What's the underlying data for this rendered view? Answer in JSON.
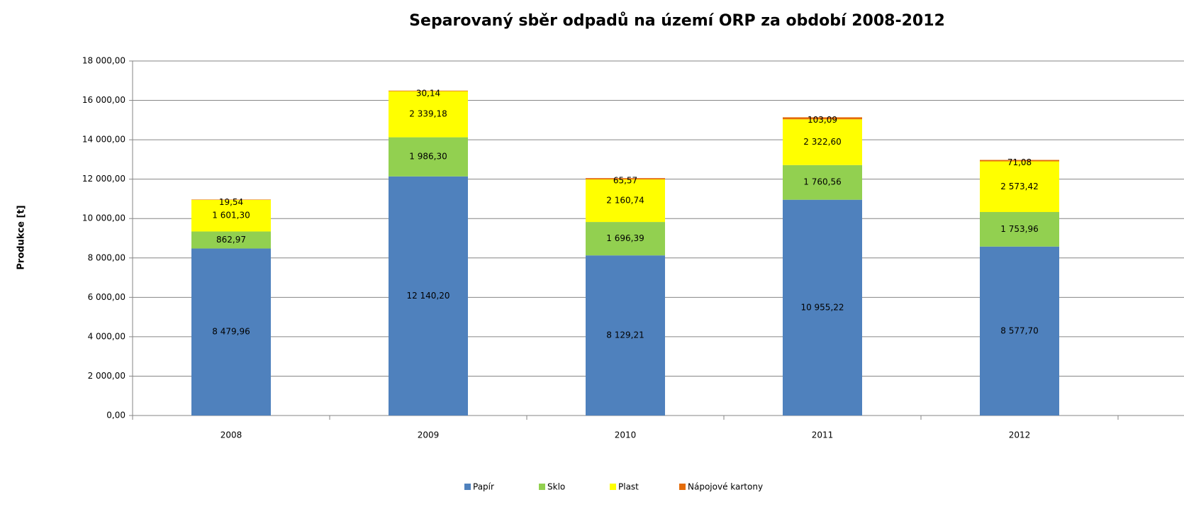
{
  "chart_data": {
    "type": "stacked_bar",
    "title": "Separovaný sběr odpadů na území ORP za období 2008-2012",
    "y_label": "Produkce [t]",
    "categories": [
      "2008",
      "2009",
      "2010",
      "2011",
      "2012"
    ],
    "series": [
      {
        "name": "Papír",
        "color": "#4f81bd",
        "values": [
          8479.96,
          12140.2,
          8129.21,
          10955.22,
          8577.7
        ],
        "value_labels": [
          "8 479,96",
          "12 140,20",
          "8 129,21",
          "10 955,22",
          "8 577,70"
        ]
      },
      {
        "name": "Sklo",
        "color": "#92d050",
        "values": [
          862.97,
          1986.3,
          1696.39,
          1760.56,
          1753.96
        ],
        "value_labels": [
          "862,97",
          "1 986,30",
          "1 696,39",
          "1 760,56",
          "1 753,96"
        ]
      },
      {
        "name": "Plast",
        "color": "#ffff00",
        "values": [
          1601.3,
          2339.18,
          2160.74,
          2322.6,
          2573.42
        ],
        "value_labels": [
          "1 601,30",
          "2 339,18",
          "2 160,74",
          "2 322,60",
          "2 573,42"
        ]
      },
      {
        "name": "Nápojové kartony",
        "color": "#e46c0a",
        "values": [
          19.54,
          30.14,
          65.57,
          103.09,
          71.08
        ],
        "value_labels": [
          "19,54",
          "30,14",
          "65,57",
          "103,09",
          "71,08"
        ]
      }
    ],
    "ylim": [
      0,
      18000
    ],
    "yticks": [
      {
        "value": 0,
        "label": "0,00"
      },
      {
        "value": 2000,
        "label": "2 000,00"
      },
      {
        "value": 4000,
        "label": "4 000,00"
      },
      {
        "value": 6000,
        "label": "6 000,00"
      },
      {
        "value": 8000,
        "label": "8 000,00"
      },
      {
        "value": 10000,
        "label": "10 000,00"
      },
      {
        "value": 12000,
        "label": "12 000,00"
      },
      {
        "value": 14000,
        "label": "14 000,00"
      },
      {
        "value": 16000,
        "label": "16 000,00"
      },
      {
        "value": 18000,
        "label": "18 000,00"
      }
    ],
    "grid": true,
    "legend": "bottom"
  }
}
